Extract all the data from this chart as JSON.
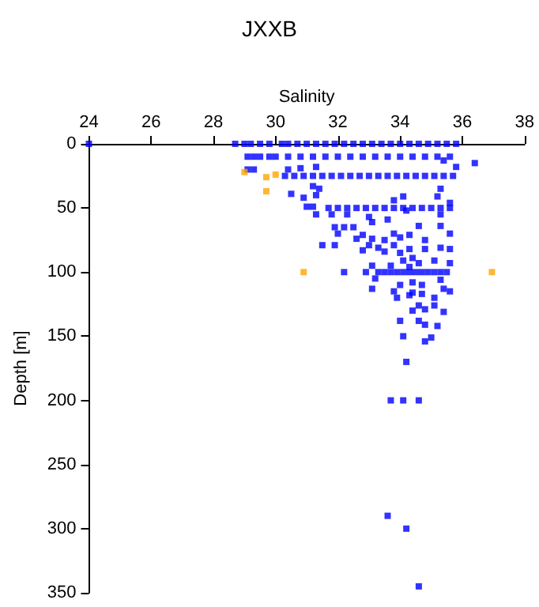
{
  "chart_data": {
    "type": "scatter",
    "title": "JXXB",
    "xlabel": "Salinity",
    "ylabel": "Depth [m]",
    "xlim": [
      24,
      38
    ],
    "xticks": [
      24,
      26,
      28,
      30,
      32,
      34,
      36,
      38
    ],
    "ylim": [
      350,
      0
    ],
    "yticks": [
      0,
      50,
      100,
      150,
      200,
      250,
      300,
      350
    ],
    "marker": "square",
    "series": [
      {
        "color": "#0000ff",
        "x": [
          24,
          28.7,
          29,
          29.2,
          29.5,
          29.8,
          30.2,
          30.4,
          30.7,
          31,
          31.3,
          31.6,
          31.9,
          32.2,
          32.5,
          32.8,
          33.1,
          33.4,
          33.7,
          34,
          34.3,
          34.6,
          34.9,
          35.2,
          35.5,
          35.8
        ],
        "values": [
          0,
          0,
          0,
          0,
          0,
          0,
          0,
          0,
          0,
          0,
          0,
          0,
          0,
          0,
          0,
          0,
          0,
          0,
          0,
          0,
          0,
          0,
          0,
          0,
          0,
          0
        ]
      },
      {
        "color": "#0000ff",
        "x": [
          29.1,
          29.3,
          29.5,
          29.8,
          30,
          30.4,
          30.8,
          31.2,
          31.6,
          32,
          32.4,
          32.8,
          33.2,
          33.6,
          34,
          34.4,
          34.8,
          35.2,
          35.6
        ],
        "values": [
          10,
          10,
          10,
          10,
          10,
          10,
          10,
          10,
          10,
          10,
          10,
          10,
          10,
          10,
          10,
          10,
          10,
          10,
          10
        ]
      },
      {
        "color": "#0000ff",
        "x": [
          35.4,
          36.4,
          35.8,
          29.1,
          29.3,
          30.4,
          30.8,
          31.3
        ],
        "values": [
          13,
          15,
          18,
          20,
          20,
          20,
          19,
          18
        ]
      },
      {
        "color": "#0000ff",
        "x": [
          30.3,
          30.6,
          30.9,
          31.2,
          31.5,
          31.8,
          32.1,
          32.4,
          32.7,
          33,
          33.3,
          33.6,
          33.9,
          34.2,
          34.5,
          34.8,
          35.1,
          35.4,
          35.7
        ],
        "values": [
          25,
          25,
          25,
          25,
          25,
          25,
          25,
          25,
          25,
          25,
          25,
          25,
          25,
          25,
          25,
          25,
          25,
          25,
          25
        ]
      },
      {
        "color": "#0000ff",
        "x": [
          31.2,
          31.4,
          30.5,
          30.9,
          31.3,
          34.1,
          33.8,
          35.3,
          35.2,
          35.6,
          31,
          31.2
        ],
        "values": [
          33,
          35,
          39,
          42,
          40,
          41,
          44,
          35,
          41,
          46,
          49,
          49
        ]
      },
      {
        "color": "#0000ff",
        "x": [
          31.7,
          32,
          32.3,
          32.6,
          32.9,
          33.2,
          33.5,
          33.8,
          34.1,
          34.4,
          34.7,
          35,
          35.3,
          35.6
        ],
        "values": [
          50,
          50,
          50,
          50,
          50,
          50,
          50,
          50,
          50,
          50,
          50,
          50,
          50,
          50
        ]
      },
      {
        "color": "#0000ff",
        "x": [
          31.3,
          31.8,
          32.3,
          33,
          33.1,
          33.6,
          34.2,
          34.6,
          35.3,
          35.6,
          35.3,
          31.9,
          32.2,
          32.5,
          32,
          32.6,
          32.8,
          33.1,
          33.5,
          33.8,
          34,
          34.3,
          34.8,
          33,
          33.3,
          33.8,
          31.5,
          31.9,
          32.8,
          33.5,
          34,
          34.3,
          34.4,
          34.8,
          35.3,
          35.6,
          34.1,
          34.6,
          33.1,
          33.7,
          34.3,
          35.1,
          35.6
        ],
        "values": [
          55,
          55,
          55,
          57,
          61,
          59,
          52,
          64,
          55,
          70,
          64,
          65,
          65,
          65,
          70,
          74,
          71,
          74,
          75,
          70,
          73,
          71,
          75,
          79,
          81,
          79,
          79,
          79,
          83,
          84,
          85,
          82,
          89,
          82,
          81,
          82,
          91,
          93,
          95,
          95,
          96,
          91,
          93
        ]
      },
      {
        "color": "#0000ff",
        "x": [
          32.2,
          32.9,
          33.3,
          33.5,
          33.7,
          33.9,
          34.1,
          34.3,
          34.5,
          34.7,
          34.9,
          35.1,
          35.3,
          35.5
        ],
        "values": [
          100,
          100,
          100,
          100,
          100,
          100,
          100,
          100,
          100,
          100,
          100,
          100,
          100,
          100
        ]
      },
      {
        "color": "#0000ff",
        "x": [
          33.2,
          33.1,
          33.8,
          34,
          34.4,
          34.7,
          35.3,
          35.4,
          35.6,
          33.9,
          34.3,
          34.4,
          34.7,
          35.1,
          35.1,
          34.6,
          34.4,
          34.8,
          35.4,
          34,
          34.6,
          34.8,
          35.2,
          34.1,
          35,
          34.8,
          34.2,
          33.7,
          34.1,
          34.6,
          33.6,
          34.2,
          34.6
        ],
        "values": [
          105,
          113,
          115,
          110,
          108,
          110,
          106,
          113,
          115,
          120,
          118,
          116,
          117,
          120,
          126,
          126,
          130,
          129,
          131,
          138,
          138,
          141,
          142,
          150,
          151,
          154,
          170,
          200,
          200,
          200,
          290,
          300,
          345
        ]
      },
      {
        "color": "#ffa500",
        "x": [
          29,
          29.7,
          30,
          29.7,
          30.9,
          36.95
        ],
        "values": [
          22,
          26,
          24,
          37,
          100,
          100
        ]
      }
    ]
  }
}
